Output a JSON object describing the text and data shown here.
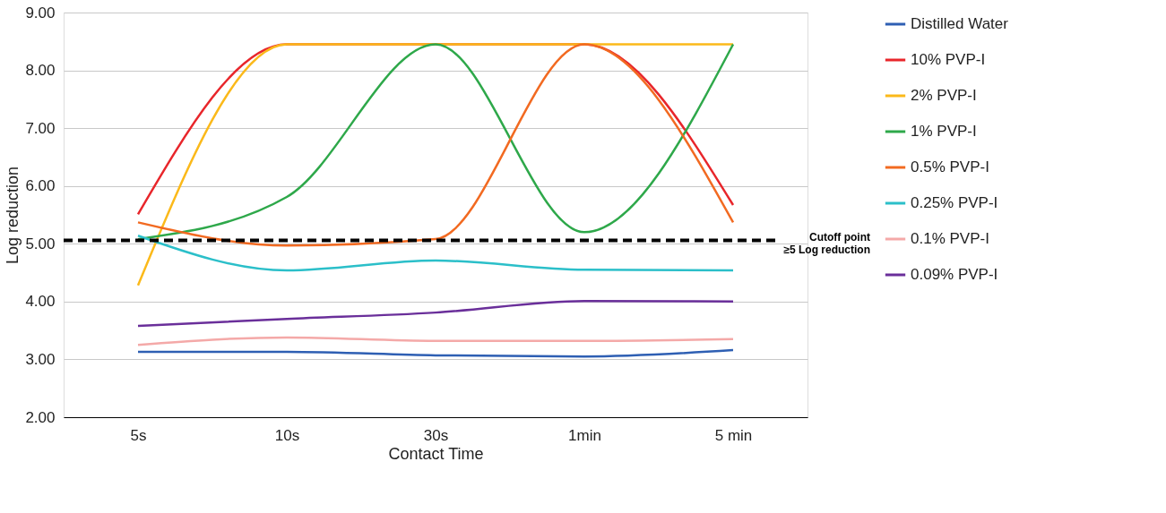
{
  "chart_data": {
    "type": "line",
    "xlabel": "Contact Time",
    "ylabel": "Log reduction",
    "categories": [
      "5s",
      "10s",
      "30s",
      "1min",
      "5 min"
    ],
    "series": [
      {
        "name": "Distilled Water",
        "color": "#2e5fb3",
        "values": [
          3.13,
          3.13,
          3.07,
          3.05,
          3.16
        ]
      },
      {
        "name": "10% PVP-I",
        "color": "#e8262b",
        "values": [
          5.51,
          8.45,
          8.45,
          8.45,
          5.67
        ]
      },
      {
        "name": "2% PVP-I",
        "color": "#fbb91a",
        "values": [
          4.28,
          8.45,
          8.45,
          8.45,
          8.45
        ]
      },
      {
        "name": "1% PVP-I",
        "color": "#2ea84a",
        "values": [
          5.08,
          5.81,
          8.45,
          5.2,
          8.45
        ]
      },
      {
        "name": "0.5% PVP-I",
        "color": "#f26a21",
        "values": [
          5.37,
          4.97,
          5.08,
          8.45,
          5.37
        ]
      },
      {
        "name": "0.25% PVP-I",
        "color": "#2bbfc9",
        "values": [
          5.14,
          4.54,
          4.71,
          4.55,
          4.54
        ]
      },
      {
        "name": "0.1% PVP-I",
        "color": "#f4a9a8",
        "values": [
          3.25,
          3.38,
          3.32,
          3.32,
          3.35
        ]
      },
      {
        "name": "0.09% PVP-I",
        "color": "#6a2f9a",
        "values": [
          3.58,
          3.7,
          3.81,
          4.01,
          4.0
        ]
      }
    ],
    "ylim": [
      2,
      9
    ],
    "yticks": [
      {
        "value": 2,
        "label": "2.00"
      },
      {
        "value": 3,
        "label": "3.00"
      },
      {
        "value": 4,
        "label": "4.00"
      },
      {
        "value": 5,
        "label": "5.00"
      },
      {
        "value": 6,
        "label": "6.00"
      },
      {
        "value": 7,
        "label": "7.00"
      },
      {
        "value": 8,
        "label": "8.00"
      },
      {
        "value": 9,
        "label": "9.00"
      }
    ],
    "ref_lines": [
      {
        "axis": "y",
        "value": 5.06,
        "label": "Cutoff point\n≥5 Log reduction",
        "color": "#000000",
        "line_style": "dashed"
      }
    ],
    "grid": "y",
    "legend": "right",
    "marker": "none",
    "line_style": "solid"
  }
}
